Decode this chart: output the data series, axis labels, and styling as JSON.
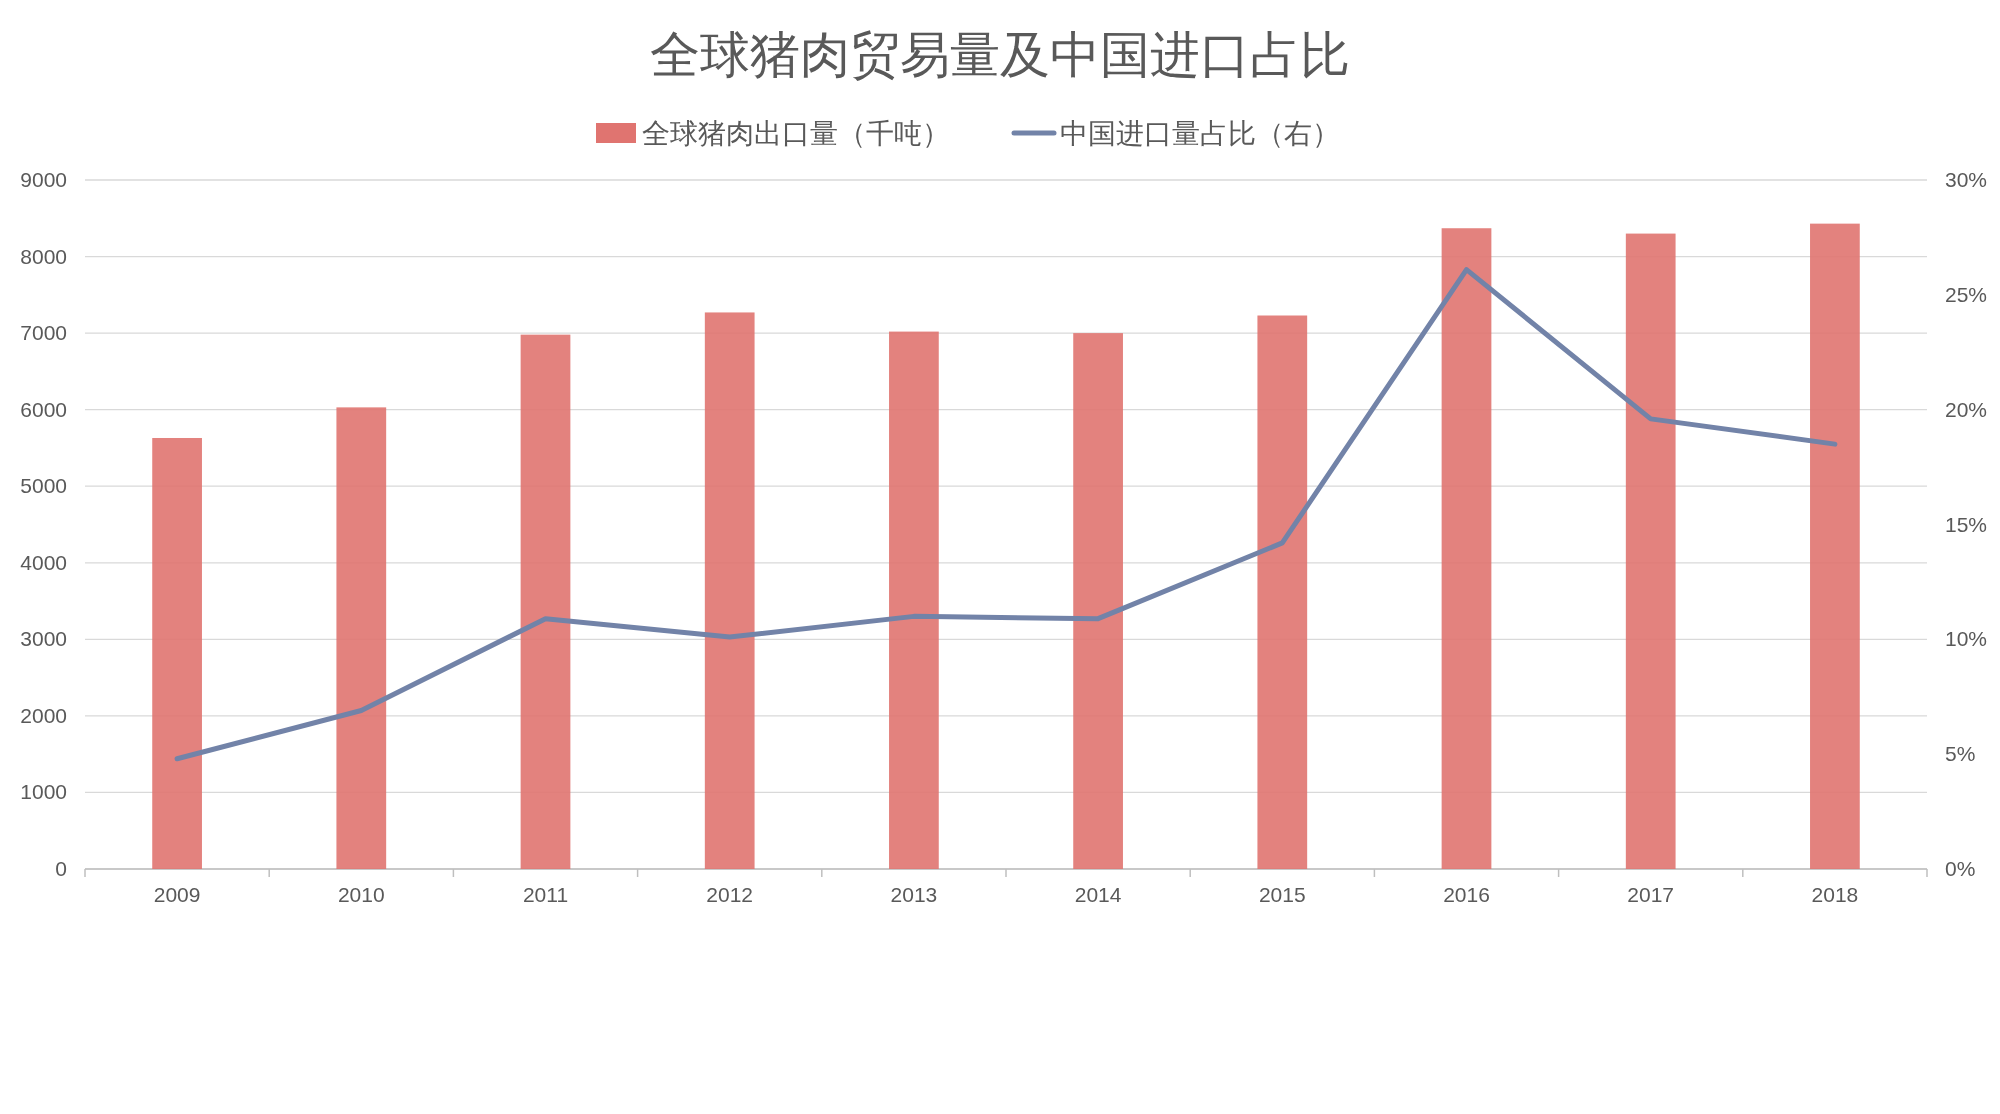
{
  "chart_data": {
    "type": "bar",
    "title": "全球猪肉贸易量及中国进口占比",
    "categories": [
      "2009",
      "2010",
      "2011",
      "2012",
      "2013",
      "2014",
      "2015",
      "2016",
      "2017",
      "2018"
    ],
    "series": [
      {
        "name": "全球猪肉出口量（千吨）",
        "color": "#e07470",
        "values": [
          5630,
          6030,
          6980,
          7270,
          7020,
          7000,
          7230,
          8370,
          8300,
          8430
        ]
      },
      {
        "name": "中国进口量占比（右）",
        "type": "line",
        "axis": "y2",
        "color": "#7283a8",
        "values": [
          4.8,
          6.9,
          10.9,
          10.1,
          11.0,
          10.9,
          14.2,
          26.1,
          19.6,
          18.5
        ]
      }
    ],
    "ylim": [
      0,
      9000
    ],
    "yticks": [
      0,
      1000,
      2000,
      3000,
      4000,
      5000,
      6000,
      7000,
      8000,
      9000
    ],
    "y2lim": [
      0,
      30
    ],
    "y2ticks": [
      {
        "value": 0,
        "label": "0%"
      },
      {
        "value": 5,
        "label": "5%"
      },
      {
        "value": 10,
        "label": "10%"
      },
      {
        "value": 15,
        "label": "15%"
      },
      {
        "value": 20,
        "label": "20%"
      },
      {
        "value": 25,
        "label": "25%"
      },
      {
        "value": 30,
        "label": "30%"
      }
    ],
    "grid": "y",
    "legend": "top"
  }
}
